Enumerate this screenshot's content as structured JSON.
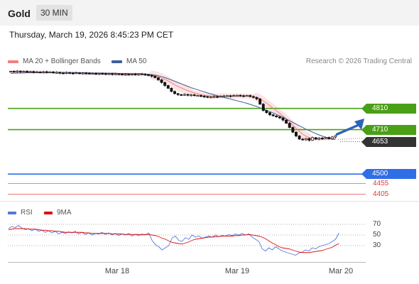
{
  "header": {
    "symbol": "Gold",
    "timeframe": "30 MIN"
  },
  "timestamp": "Thursday, March 19, 2026 8:45:23 PM CET",
  "legend": {
    "ma20": {
      "label": "MA 20 + Bollinger Bands",
      "color": "#f08080"
    },
    "ma50": {
      "label": "MA 50",
      "color": "#3d5f9c"
    },
    "copyright": "Research © 2026 Trading Central"
  },
  "rsi_legend": {
    "rsi": {
      "label": "RSI",
      "color": "#5577dd"
    },
    "ma9": {
      "label": "9MA",
      "color": "#dd1111"
    }
  },
  "levels": [
    {
      "value": 4810,
      "label": "4810",
      "color": "#4aa015",
      "style": "tag"
    },
    {
      "value": 4710,
      "label": "4710",
      "color": "#4aa015",
      "style": "tag"
    },
    {
      "value": 4653,
      "label": "4653",
      "color": "#333333",
      "style": "tag"
    },
    {
      "value": 4500,
      "label": "4500",
      "color": "#2f6ee6",
      "style": "tag"
    },
    {
      "value": 4455,
      "label": "4455",
      "color": "#e23a3a",
      "style": "plain"
    },
    {
      "value": 4405,
      "label": "4405",
      "color": "#e23a3a",
      "style": "plain"
    }
  ],
  "rsi_levels": [
    "70",
    "50",
    "30"
  ],
  "x_labels": [
    "Mar 18",
    "Mar 19",
    "Mar 20"
  ],
  "chart_data": [
    {
      "type": "candlestick",
      "title": "Gold",
      "y_range": [
        4380,
        5010
      ],
      "x_ticks": [
        "Mar 18",
        "Mar 19",
        "Mar 20"
      ],
      "close": [
        4985,
        4984,
        4986,
        4983,
        4985,
        4982,
        4984,
        4981,
        4982,
        4980,
        4983,
        4981,
        4982,
        4978,
        4980,
        4977,
        4976,
        4979,
        4977,
        4976,
        4978,
        4975,
        4977,
        4976,
        4974,
        4975,
        4973,
        4975,
        4974,
        4972,
        4974,
        4971,
        4973,
        4972,
        4970,
        4971,
        4969,
        4972,
        4970,
        4973,
        4971,
        4969,
        4967,
        4962,
        4955,
        4945,
        4932,
        4918,
        4905,
        4890,
        4880,
        4875,
        4873,
        4876,
        4872,
        4874,
        4870,
        4871,
        4868,
        4866,
        4862,
        4864,
        4866,
        4865,
        4867,
        4869,
        4870,
        4868,
        4871,
        4872,
        4870,
        4869,
        4871,
        4866,
        4862,
        4855,
        4830,
        4800,
        4790,
        4780,
        4775,
        4770,
        4765,
        4755,
        4740,
        4720,
        4698,
        4680,
        4665,
        4662,
        4668,
        4660,
        4672,
        4665,
        4670,
        4668,
        4673,
        4667,
        4675,
        4681
      ],
      "series": [
        {
          "name": "MA 20",
          "values": [
            4984,
            4984,
            4984,
            4984,
            4983,
            4983,
            4983,
            4983,
            4982,
            4982,
            4982,
            4981,
            4981,
            4980,
            4980,
            4979,
            4979,
            4978,
            4978,
            4977,
            4977,
            4976,
            4976,
            4975,
            4975,
            4975,
            4974,
            4974,
            4974,
            4973,
            4973,
            4973,
            4973,
            4972,
            4972,
            4972,
            4972,
            4971,
            4971,
            4971,
            4971,
            4970,
            4969,
            4967,
            4964,
            4960,
            4954,
            4947,
            4940,
            4931,
            4922,
            4914,
            4907,
            4900,
            4894,
            4888,
            4883,
            4879,
            4875,
            4872,
            4870,
            4869,
            4868,
            4868,
            4868,
            4868,
            4868,
            4868,
            4868,
            4868,
            4868,
            4868,
            4868,
            4867,
            4865,
            4862,
            4855,
            4845,
            4835,
            4823,
            4811,
            4799,
            4787,
            4774,
            4761,
            4746,
            4731,
            4716,
            4701,
            4688,
            4679,
            4672,
            4668,
            4665,
            4665,
            4665,
            4666,
            4666,
            4667,
            4668
          ]
        },
        {
          "name": "MA 50",
          "values": [
            4975,
            4976,
            4976,
            4977,
            4977,
            4978,
            4978,
            4978,
            4979,
            4979,
            4979,
            4979,
            4979,
            4979,
            4979,
            4979,
            4979,
            4979,
            4979,
            4979,
            4979,
            4978,
            4978,
            4978,
            4978,
            4977,
            4977,
            4977,
            4977,
            4976,
            4976,
            4976,
            4976,
            4975,
            4975,
            4975,
            4975,
            4974,
            4974,
            4974,
            4973,
            4972,
            4971,
            4969,
            4967,
            4964,
            4960,
            4955,
            4950,
            4944,
            4938,
            4932,
            4926,
            4920,
            4914,
            4908,
            4903,
            4898,
            4893,
            4888,
            4883,
            4879,
            4874,
            4870,
            4866,
            4862,
            4858,
            4854,
            4850,
            4846,
            4842,
            4838,
            4834,
            4829,
            4824,
            4819,
            4813,
            4807,
            4801,
            4795,
            4789,
            4782,
            4775,
            4768,
            4760,
            4752,
            4744,
            4736,
            4728,
            4720,
            4712,
            4705,
            4698,
            4691,
            4685,
            4679,
            4674,
            4670,
            4666,
            4663
          ]
        }
      ]
    },
    {
      "type": "line",
      "title": "RSI",
      "y_range": [
        0,
        100
      ],
      "series": [
        {
          "name": "RSI",
          "values": [
            62,
            66,
            64,
            68,
            63,
            60,
            62,
            58,
            61,
            57,
            59,
            55,
            58,
            54,
            57,
            52,
            55,
            53,
            56,
            54,
            57,
            52,
            55,
            51,
            54,
            50,
            53,
            52,
            55,
            51,
            54,
            50,
            53,
            49,
            52,
            50,
            53,
            48,
            51,
            49,
            52,
            50,
            54,
            40,
            32,
            28,
            22,
            26,
            30,
            44,
            48,
            40,
            38,
            45,
            42,
            50,
            46,
            48,
            44,
            46,
            48,
            46,
            50,
            47,
            49,
            48,
            51,
            49,
            52,
            50,
            53,
            50,
            52,
            46,
            42,
            38,
            24,
            20,
            26,
            22,
            28,
            24,
            20,
            18,
            16,
            14,
            12,
            16,
            18,
            22,
            20,
            26,
            24,
            28,
            30,
            32,
            34,
            38,
            42,
            54
          ]
        },
        {
          "name": "9MA",
          "values": [
            60,
            61,
            62,
            62,
            62,
            62,
            61,
            61,
            61,
            60,
            59,
            59,
            58,
            58,
            57,
            57,
            56,
            55,
            55,
            55,
            55,
            55,
            55,
            54,
            54,
            53,
            53,
            53,
            53,
            53,
            53,
            52,
            52,
            52,
            52,
            51,
            51,
            51,
            51,
            51,
            50,
            51,
            51,
            50,
            49,
            47,
            44,
            42,
            39,
            36,
            35,
            34,
            33,
            35,
            37,
            40,
            42,
            43,
            44,
            45,
            46,
            46,
            47,
            47,
            48,
            48,
            48,
            48,
            49,
            49,
            50,
            50,
            51,
            50,
            49,
            48,
            46,
            43,
            39,
            35,
            32,
            28,
            26,
            25,
            24,
            22,
            20,
            18,
            17,
            17,
            17,
            18,
            19,
            20,
            21,
            23,
            25,
            27,
            31,
            34
          ]
        }
      ]
    }
  ]
}
